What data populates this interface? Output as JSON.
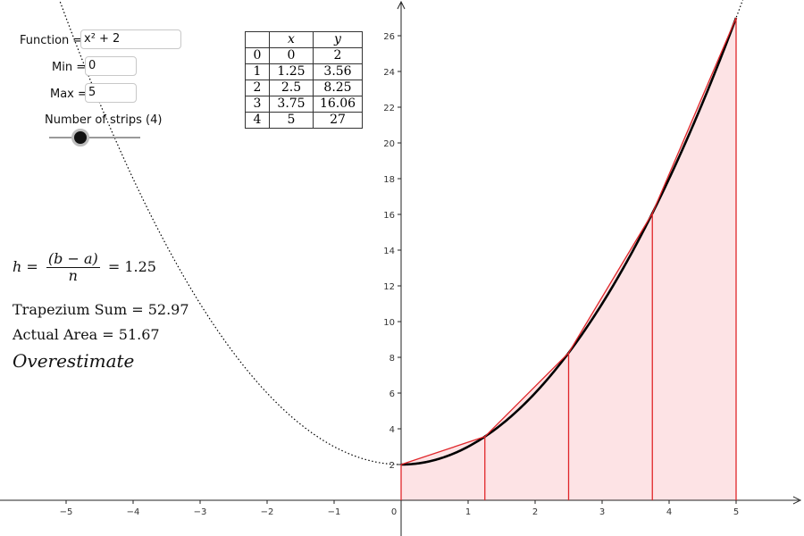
{
  "controls": {
    "function_label": "Function = ",
    "function_value": "x² + 2",
    "min_label": "Min = ",
    "min_value": "0",
    "max_label": "Max = ",
    "max_value": "5",
    "slider_label": "Number of strips (4)",
    "strips": 4
  },
  "table": {
    "headers": [
      "",
      "x",
      "y"
    ],
    "rows": [
      [
        "0",
        "0",
        "2"
      ],
      [
        "1",
        "1.25",
        "3.56"
      ],
      [
        "2",
        "2.5",
        "8.25"
      ],
      [
        "3",
        "3.75",
        "16.06"
      ],
      [
        "4",
        "5",
        "27"
      ]
    ]
  },
  "formula": {
    "h_var": "h",
    "eq": "=",
    "numerator": "(b − a)",
    "denominator": "n",
    "h_value": "1.25",
    "trap_label": "Trapezium Sum",
    "trap_value": "52.97",
    "actual_label": "Actual Area",
    "actual_value": "51.67",
    "verdict": "Overestimate"
  },
  "chart_data": {
    "type": "line",
    "function": "x^2 + 2",
    "x_range": [
      -6,
      6
    ],
    "y_range": [
      -1,
      27.5
    ],
    "x_ticks": [
      -5,
      -4,
      -3,
      -2,
      -1,
      0,
      1,
      2,
      3,
      4,
      5
    ],
    "y_ticks": [
      2,
      4,
      6,
      8,
      10,
      12,
      14,
      16,
      18,
      20,
      22,
      24,
      26
    ],
    "a": 0,
    "b": 5,
    "n": 4,
    "trapezium_points": [
      {
        "x": 0,
        "y": 2
      },
      {
        "x": 1.25,
        "y": 3.56
      },
      {
        "x": 2.5,
        "y": 8.25
      },
      {
        "x": 3.75,
        "y": 16.06
      },
      {
        "x": 5,
        "y": 27
      }
    ],
    "colors": {
      "curve": "#000000",
      "trapezium_edge": "#e0262a",
      "trapezium_fill": "#fde3e5",
      "axis": "#222222"
    }
  }
}
